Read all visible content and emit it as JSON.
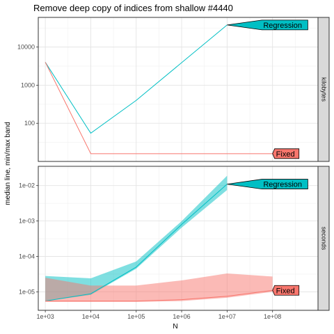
{
  "chart_data": {
    "type": "line",
    "title": "Remove deep copy of indices from shallow #4440",
    "xlabel": "N",
    "ylabel": "median line, min/max band",
    "x_scale": "log10",
    "x_ticks": [
      1000,
      10000,
      100000,
      1000000,
      10000000,
      100000000
    ],
    "x_tick_labels": [
      "1e+03",
      "1e+04",
      "1e+05",
      "1e+06",
      "1e+07",
      "1e+08"
    ],
    "xlim": [
      700,
      1000000000
    ],
    "colors": {
      "Fixed": "#F8766D",
      "Regression": "#00BFC4"
    },
    "panels": [
      {
        "strip": "kilobytes",
        "y_scale": "log10",
        "ylim": [
          10,
          60000
        ],
        "y_ticks": [
          100,
          1000,
          10000
        ],
        "y_tick_labels": [
          "100",
          "1000",
          "10000"
        ],
        "series": [
          {
            "name": "Regression",
            "x": [
              1000,
              10000,
              100000,
              10000000
            ],
            "median": [
              4000,
              55,
              400,
              38000
            ]
          },
          {
            "name": "Fixed",
            "x": [
              1000,
              10000,
              100000000
            ],
            "median": [
              4000,
              16,
              16
            ]
          }
        ],
        "callouts": [
          {
            "label": "Regression",
            "series": "Regression",
            "x": 10000000,
            "y": 38000
          },
          {
            "label": "Fixed",
            "series": "Fixed",
            "x": 100000000,
            "y": 16
          }
        ]
      },
      {
        "strip": "seconds",
        "y_scale": "log10",
        "ylim": [
          3e-06,
          0.035
        ],
        "y_ticks": [
          1e-05,
          0.0001,
          0.001,
          0.01
        ],
        "y_tick_labels": [
          "1e-05",
          "1e-04",
          "1e-03",
          "1e-02"
        ],
        "series": [
          {
            "name": "Regression",
            "x": [
              1000,
              10000,
              100000,
              1000000,
              10000000
            ],
            "median": [
              5.5e-06,
              8.8e-06,
              5e-05,
              0.0008,
              0.011
            ],
            "min": [
              5.5e-06,
              8.2e-06,
              4.5e-05,
              0.00065,
              0.0075
            ],
            "max": [
              2.8e-05,
              2.4e-05,
              7.2e-05,
              0.00099,
              0.019
            ]
          },
          {
            "name": "Fixed",
            "x": [
              1000,
              10000,
              100000,
              1000000,
              10000000,
              100000000
            ],
            "median": [
              5.5e-06,
              5.5e-06,
              5.5e-06,
              6e-06,
              7.5e-06,
              1.1e-05
            ],
            "min": [
              5.2e-06,
              5.2e-06,
              5.2e-06,
              5.5e-06,
              6.8e-06,
              1e-05
            ],
            "max": [
              2.5e-05,
              1.5e-05,
              1.5e-05,
              2.1e-05,
              3.3e-05,
              2.7e-05
            ]
          }
        ],
        "callouts": [
          {
            "label": "Regression",
            "series": "Regression",
            "x": 10000000,
            "y": 0.011
          },
          {
            "label": "Fixed",
            "series": "Fixed",
            "x": 100000000,
            "y": 1.1e-05
          }
        ]
      }
    ]
  }
}
